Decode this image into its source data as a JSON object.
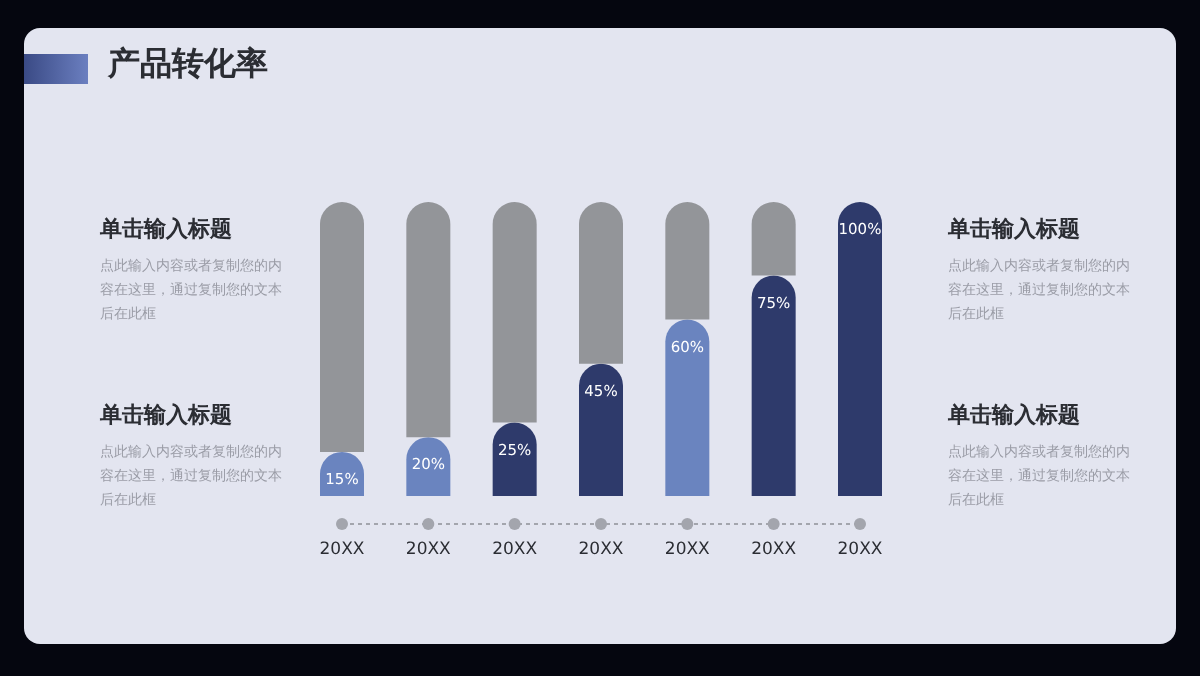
{
  "chart_data": {
    "type": "bar",
    "title": "产品转化率",
    "stacked": true,
    "categories": [
      "20XX",
      "20XX",
      "20XX",
      "20XX",
      "20XX",
      "20XX",
      "20XX"
    ],
    "series": [
      {
        "values": [
          15,
          20,
          25,
          45,
          60,
          75,
          100
        ],
        "colors": [
          "#6a84bf",
          "#6a84bf",
          "#2e3a6b",
          "#2e3a6b",
          "#6a84bf",
          "#2e3a6b",
          "#2e3a6b"
        ],
        "value_labels": [
          "15%",
          "20%",
          "25%",
          "45%",
          "60%",
          "75%",
          "100%"
        ]
      },
      {
        "color": "#939599",
        "values": [
          85,
          80,
          75,
          55,
          40,
          25,
          0
        ]
      }
    ],
    "annotations": [
      "单击输入标题",
      "点此输入内容或者复制您的内容在这里，通过复制您的文本后在此框",
      "单击输入标题",
      "点此输入内容或者复制您的内容在这里，通过复制您的文本后在此框",
      "单击输入标题",
      "点此输入内容或者复制您的内容在这里，通过复制您的文本后在此框",
      "单击输入标题",
      "点此输入内容或者复制您的内容在这里，通过复制您的文本后在此框"
    ],
    "grid": false
  }
}
